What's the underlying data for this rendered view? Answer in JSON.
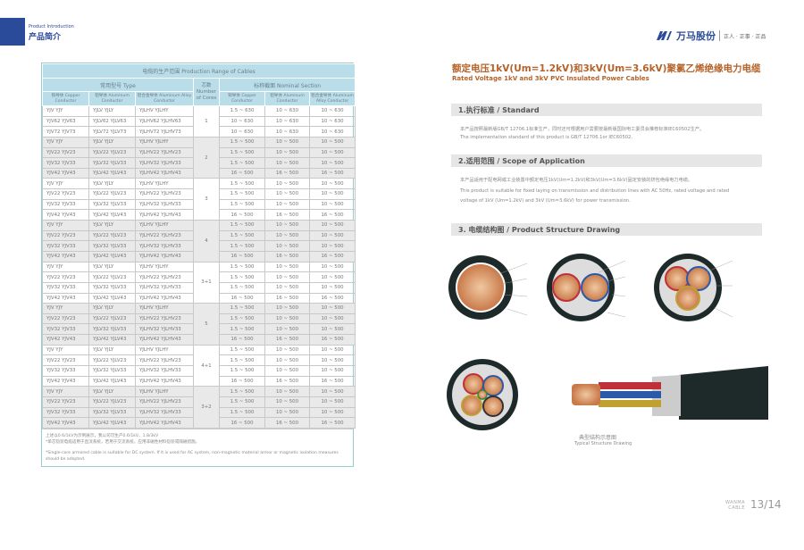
{
  "header": {
    "section_en": "Product Introduction",
    "section_cn": "产品简介"
  },
  "logo": {
    "brand": "万马股份",
    "slogan": "正人 · 正事 · 正品",
    "colors": {
      "brand": "#2a4a9a"
    }
  },
  "table": {
    "title": "电缆的生产范围 Production Range of Cables",
    "type_header": "常用型号 Type",
    "cores_header": "芯数 Number of Cores",
    "section_header": "标称截面 Nominal Section",
    "sub_headers": [
      "铜导体 Copper Conductor",
      "铝导体 Aluminum Conductor",
      "铝合金导体 Aluminum Alloy Conductor",
      "铜导体 Copper Conductor",
      "铝导体 Aluminum Conductor",
      "铝合金导体 Aluminum Alloy Conductor"
    ],
    "groups": [
      {
        "cores": "1",
        "rows": [
          [
            "YJV YJY",
            "YJLV YJLY",
            "YJLHV YJLHY",
            "1.5 ~ 630",
            "10 ~ 630",
            "10 ~ 630"
          ],
          [
            "YJV62 YJV63",
            "YJLV62 YJLV63",
            "YJLHV62 YJLHV63",
            "10 ~ 630",
            "10 ~ 630",
            "10 ~ 630"
          ],
          [
            "YJV72 YJV73",
            "YJLV72 YJLV73",
            "YJLHV72 YJLHV73",
            "10 ~ 630",
            "10 ~ 630",
            "10 ~ 630"
          ]
        ]
      },
      {
        "cores": "2",
        "rows": [
          [
            "YJV YJY",
            "YJLV YJLY",
            "YJLHV YJLHY",
            "1.5 ~ 500",
            "10 ~ 500",
            "10 ~ 500"
          ],
          [
            "YJV22 YJV23",
            "YJLV22 YJLV23",
            "YJLHV22 YJLHV23",
            "1.5 ~ 500",
            "10 ~ 500",
            "10 ~ 500"
          ],
          [
            "YJV32 YJV33",
            "YJLV32 YJLV33",
            "YJLHV32 YJLHV33",
            "1.5 ~ 500",
            "10 ~ 500",
            "10 ~ 500"
          ],
          [
            "YJV42 YJV43",
            "YJLV42 YJLV43",
            "YJLHV42 YJLHV43",
            "16 ~ 500",
            "16 ~ 500",
            "16 ~ 500"
          ]
        ]
      },
      {
        "cores": "3",
        "rows": [
          [
            "YJV YJY",
            "YJLV YJLY",
            "YJLHV YJLHY",
            "1.5 ~ 500",
            "10 ~ 500",
            "10 ~ 500"
          ],
          [
            "YJV22 YJV23",
            "YJLV22 YJLV23",
            "YJLHV22 YJLHV23",
            "1.5 ~ 500",
            "10 ~ 500",
            "10 ~ 500"
          ],
          [
            "YJV32 YJV33",
            "YJLV32 YJLV33",
            "YJLHV32 YJLHV33",
            "1.5 ~ 500",
            "10 ~ 500",
            "10 ~ 500"
          ],
          [
            "YJV42 YJV43",
            "YJLV42 YJLV43",
            "YJLHV42 YJLHV43",
            "16 ~ 500",
            "16 ~ 500",
            "16 ~ 500"
          ]
        ]
      },
      {
        "cores": "4",
        "rows": [
          [
            "YJV YJY",
            "YJLV YJLY",
            "YJLHV YJLHY",
            "1.5 ~ 500",
            "10 ~ 500",
            "10 ~ 500"
          ],
          [
            "YJV22 YJV23",
            "YJLV22 YJLV23",
            "YJLHV22 YJLHV23",
            "1.5 ~ 500",
            "10 ~ 500",
            "10 ~ 500"
          ],
          [
            "YJV32 YJV33",
            "YJLV32 YJLV33",
            "YJLHV32 YJLHV33",
            "1.5 ~ 500",
            "10 ~ 500",
            "10 ~ 500"
          ],
          [
            "YJV42 YJV43",
            "YJLV42 YJLV43",
            "YJLHV42 YJLHV43",
            "16 ~ 500",
            "16 ~ 500",
            "16 ~ 500"
          ]
        ]
      },
      {
        "cores": "3+1",
        "rows": [
          [
            "YJV YJY",
            "YJLV YJLY",
            "YJLHV YJLHY",
            "1.5 ~ 500",
            "10 ~ 500",
            "10 ~ 500"
          ],
          [
            "YJV22 YJV23",
            "YJLV22 YJLV23",
            "YJLHV22 YJLHV23",
            "1.5 ~ 500",
            "10 ~ 500",
            "10 ~ 500"
          ],
          [
            "YJV32 YJV33",
            "YJLV32 YJLV33",
            "YJLHV32 YJLHV33",
            "1.5 ~ 500",
            "10 ~ 500",
            "10 ~ 500"
          ],
          [
            "YJV42 YJV43",
            "YJLV42 YJLV43",
            "YJLHV42 YJLHV43",
            "16 ~ 500",
            "16 ~ 500",
            "16 ~ 500"
          ]
        ]
      },
      {
        "cores": "5",
        "rows": [
          [
            "YJV YJY",
            "YJLV YJLY",
            "YJLHV YJLHY",
            "1.5 ~ 500",
            "10 ~ 500",
            "10 ~ 500"
          ],
          [
            "YJV22 YJV23",
            "YJLV22 YJLV23",
            "YJLHV22 YJLHV23",
            "1.5 ~ 500",
            "10 ~ 500",
            "10 ~ 500"
          ],
          [
            "YJV32 YJV33",
            "YJLV32 YJLV33",
            "YJLHV32 YJLHV33",
            "1.5 ~ 500",
            "10 ~ 500",
            "10 ~ 500"
          ],
          [
            "YJV42 YJV43",
            "YJLV42 YJLV43",
            "YJLHV42 YJLHV43",
            "16 ~ 500",
            "16 ~ 500",
            "16 ~ 500"
          ]
        ]
      },
      {
        "cores": "4+1",
        "rows": [
          [
            "YJV YJY",
            "YJLV YJLY",
            "YJLHV YJLHY",
            "1.5 ~ 500",
            "10 ~ 500",
            "10 ~ 500"
          ],
          [
            "YJV22 YJV23",
            "YJLV22 YJLV23",
            "YJLHV22 YJLHV23",
            "1.5 ~ 500",
            "10 ~ 500",
            "10 ~ 500"
          ],
          [
            "YJV32 YJV33",
            "YJLV32 YJLV33",
            "YJLHV32 YJLHV33",
            "1.5 ~ 500",
            "10 ~ 500",
            "10 ~ 500"
          ],
          [
            "YJV42 YJV43",
            "YJLV42 YJLV43",
            "YJLHV42 YJLHV43",
            "16 ~ 500",
            "16 ~ 500",
            "16 ~ 500"
          ]
        ]
      },
      {
        "cores": "3+2",
        "rows": [
          [
            "YJV YJY",
            "YJLV YJLY",
            "YJLHV YJLHY",
            "1.5 ~ 500",
            "10 ~ 500",
            "10 ~ 500"
          ],
          [
            "YJV22 YJV23",
            "YJLV22 YJLV23",
            "YJLHV22 YJLHV23",
            "1.5 ~ 500",
            "10 ~ 500",
            "10 ~ 500"
          ],
          [
            "YJV32 YJV33",
            "YJLV32 YJLV33",
            "YJLHV32 YJLHV33",
            "1.5 ~ 500",
            "10 ~ 500",
            "10 ~ 500"
          ],
          [
            "YJV42 YJV43",
            "YJLV42 YJLV43",
            "YJLHV42 YJLHV43",
            "16 ~ 500",
            "16 ~ 500",
            "16 ~ 500"
          ]
        ]
      }
    ],
    "notes": [
      "上述以0.6/1kV为示例展示，我公司可生产0.6/1kV、1.8/3kV",
      "*单芯铠装电缆适用于直流系统，若用于交流系统，应用非磁性材料铠装或隔磁措施。",
      "*Single-core armored cable is suitable for DC system. If it is used for AC system, non-magnetic material armor or magnetic isolation measures should be adopted."
    ]
  },
  "product": {
    "title_cn": "额定电压1kV(Um=1.2kV)和3kV(Um=3.6kV)聚氯乙烯绝缘电力电缆",
    "title_en": "Rated Voltage 1kV and 3kV PVC Insulated Power Cables",
    "sections": [
      {
        "heading": "1.执行标准 / Standard",
        "lines": [
          "本产品按照最新版GB/T 12706.1标准生产，同时还可根据用户需要按最新版国际电工委员会推荐标准IEC60502生产。",
          "The implementation standard of this product is GB/T 12706.1or IEC60502."
        ]
      },
      {
        "heading": "2.适用范围 / Scope of Application",
        "lines": [
          "本产品适用于配电网或工业装置中额定电压1kV(Um=1.2kV)和3kV(Um=3.6kV)固定安装的挤包绝缘电力电缆。",
          "This product is suitable for fixed laying on transmission and distribution lines with AC 50Hz, rated voltage and rated",
          "voltage of 1kV (Um=1.2kV) and 3kV (Um=3.6kV) for power transmission."
        ]
      },
      {
        "heading": "3. 电缆结构图 / Product Structure Drawing",
        "lines": []
      }
    ],
    "caption_cn": "典型结构示意图",
    "caption_en": "Typical Structure Drawing",
    "colors": {
      "title": "#b5632a",
      "copper": "#d9956a"
    }
  },
  "footer": {
    "watermark": "WANMA CABLE",
    "page": "13/14"
  }
}
